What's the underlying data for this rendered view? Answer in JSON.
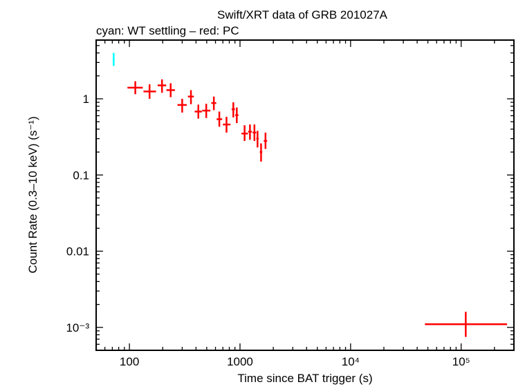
{
  "chart_data": {
    "type": "scatter",
    "title": "Swift/XRT data of GRB 201027A",
    "subtitle": "cyan: WT settling – red: PC",
    "xlabel": "Time since BAT trigger (s)",
    "ylabel": "Count Rate (0.3–10 keV) (s⁻¹)",
    "xscale": "log",
    "yscale": "log",
    "xlim": [
      50,
      300000
    ],
    "ylim": [
      0.0005,
      5.9
    ],
    "grid": false,
    "x_ticks": [
      {
        "value": 100,
        "label": "100"
      },
      {
        "value": 1000,
        "label": "1000"
      },
      {
        "value": 10000,
        "label": "10⁴"
      },
      {
        "value": 100000,
        "label": "10⁵"
      }
    ],
    "y_ticks": [
      {
        "value": 0.001,
        "label": "10⁻³"
      },
      {
        "value": 0.01,
        "label": "0.01"
      },
      {
        "value": 0.1,
        "label": "0.1"
      },
      {
        "value": 1,
        "label": "1"
      }
    ],
    "series": [
      {
        "name": "WT settling",
        "color": "#00ffff",
        "points": [
          {
            "x": 72,
            "xlo": 71,
            "xhi": 73.5,
            "y": 3.3,
            "ylo": 2.7,
            "yhi": 4.0
          }
        ]
      },
      {
        "name": "PC",
        "color": "#ff0000",
        "points": [
          {
            "x": 113,
            "xlo": 96,
            "xhi": 132,
            "y": 1.4,
            "ylo": 1.15,
            "yhi": 1.7
          },
          {
            "x": 152,
            "xlo": 134,
            "xhi": 174,
            "y": 1.25,
            "ylo": 1.0,
            "yhi": 1.55
          },
          {
            "x": 197,
            "xlo": 180,
            "xhi": 215,
            "y": 1.5,
            "ylo": 1.2,
            "yhi": 1.8
          },
          {
            "x": 236,
            "xlo": 216,
            "xhi": 258,
            "y": 1.3,
            "ylo": 1.05,
            "yhi": 1.6
          },
          {
            "x": 300,
            "xlo": 272,
            "xhi": 330,
            "y": 0.83,
            "ylo": 0.66,
            "yhi": 1.0
          },
          {
            "x": 360,
            "xlo": 338,
            "xhi": 382,
            "y": 1.07,
            "ylo": 0.85,
            "yhi": 1.3
          },
          {
            "x": 420,
            "xlo": 389,
            "xhi": 452,
            "y": 0.68,
            "ylo": 0.55,
            "yhi": 0.84
          },
          {
            "x": 495,
            "xlo": 455,
            "xhi": 540,
            "y": 0.7,
            "ylo": 0.56,
            "yhi": 0.86
          },
          {
            "x": 580,
            "xlo": 550,
            "xhi": 610,
            "y": 0.88,
            "ylo": 0.71,
            "yhi": 1.07
          },
          {
            "x": 650,
            "xlo": 615,
            "xhi": 690,
            "y": 0.54,
            "ylo": 0.43,
            "yhi": 0.68
          },
          {
            "x": 755,
            "xlo": 700,
            "xhi": 820,
            "y": 0.46,
            "ylo": 0.36,
            "yhi": 0.58
          },
          {
            "x": 870,
            "xlo": 840,
            "xhi": 900,
            "y": 0.73,
            "ylo": 0.57,
            "yhi": 0.9
          },
          {
            "x": 935,
            "xlo": 905,
            "xhi": 968,
            "y": 0.61,
            "ylo": 0.48,
            "yhi": 0.77
          },
          {
            "x": 1100,
            "xlo": 1030,
            "xhi": 1180,
            "y": 0.35,
            "ylo": 0.28,
            "yhi": 0.45
          },
          {
            "x": 1230,
            "xlo": 1185,
            "xhi": 1280,
            "y": 0.37,
            "ylo": 0.29,
            "yhi": 0.46
          },
          {
            "x": 1350,
            "xlo": 1300,
            "xhi": 1400,
            "y": 0.36,
            "ylo": 0.28,
            "yhi": 0.46
          },
          {
            "x": 1440,
            "xlo": 1405,
            "xhi": 1475,
            "y": 0.3,
            "ylo": 0.23,
            "yhi": 0.38
          },
          {
            "x": 1550,
            "xlo": 1510,
            "xhi": 1590,
            "y": 0.2,
            "ylo": 0.15,
            "yhi": 0.26
          },
          {
            "x": 1700,
            "xlo": 1640,
            "xhi": 1760,
            "y": 0.28,
            "ylo": 0.22,
            "yhi": 0.36
          },
          {
            "x": 110000,
            "xlo": 47000,
            "xhi": 260000,
            "y": 0.0011,
            "ylo": 0.00075,
            "yhi": 0.0016
          }
        ]
      }
    ]
  }
}
